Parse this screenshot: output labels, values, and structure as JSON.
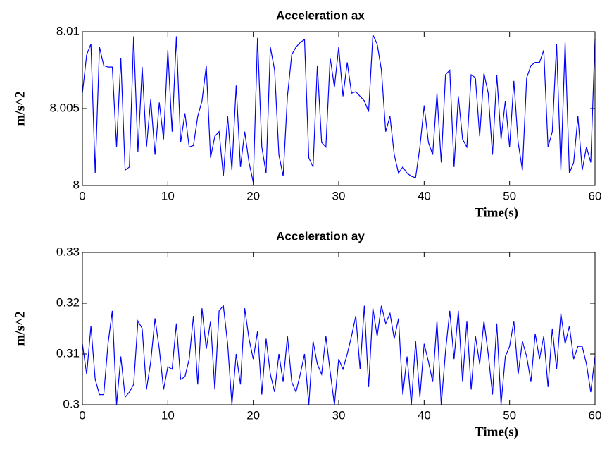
{
  "chart_data": [
    {
      "type": "line",
      "title": "Acceleration ax",
      "xlabel": "Time(s)",
      "ylabel": "m/s^2",
      "color": "#0000ff",
      "xlim": [
        0,
        60
      ],
      "xticks": [
        0,
        10,
        20,
        30,
        40,
        50,
        60
      ],
      "ylim": [
        8,
        8.01
      ],
      "yticks": [
        8,
        8.005,
        8.01
      ],
      "x": [
        0,
        0.5,
        1,
        1.5,
        2,
        2.5,
        3,
        3.5,
        4,
        4.5,
        5,
        5.5,
        6,
        6.5,
        7,
        7.5,
        8,
        8.5,
        9,
        9.5,
        10,
        10.5,
        11,
        11.5,
        12,
        12.5,
        13,
        13.5,
        14,
        14.5,
        15,
        15.5,
        16,
        16.5,
        17,
        17.5,
        18,
        18.5,
        19,
        19.5,
        20,
        20.5,
        21,
        21.5,
        22,
        22.5,
        23,
        23.5,
        24,
        24.5,
        25,
        25.5,
        26,
        26.5,
        27,
        27.5,
        28,
        28.5,
        29,
        29.5,
        30,
        30.5,
        31,
        31.5,
        32,
        32.5,
        33,
        33.5,
        34,
        34.5,
        35,
        35.5,
        36,
        36.5,
        37,
        37.5,
        38,
        38.5,
        39,
        39.5,
        40,
        40.5,
        41,
        41.5,
        42,
        42.5,
        43,
        43.5,
        44,
        44.5,
        45,
        45.5,
        46,
        46.5,
        47,
        47.5,
        48,
        48.5,
        49,
        49.5,
        50,
        50.5,
        51,
        51.5,
        52,
        52.5,
        53,
        53.5,
        54,
        54.5,
        55,
        55.5,
        56,
        56.5,
        57,
        57.5,
        58,
        58.5,
        59,
        59.5,
        60
      ],
      "values": [
        8.006,
        8.0085,
        8.0092,
        8.0008,
        8.009,
        8.0078,
        8.0077,
        8.0077,
        8.0025,
        8.0083,
        8.001,
        8.0012,
        8.0097,
        8.0022,
        8.0077,
        8.0025,
        8.0056,
        8.002,
        8.0054,
        8.003,
        8.0088,
        8.0035,
        8.0097,
        8.0028,
        8.0047,
        8.0025,
        8.0026,
        8.0045,
        8.0055,
        8.0078,
        8.0018,
        8.0032,
        8.0035,
        8.0006,
        8.0045,
        8.001,
        8.0065,
        8.0012,
        8.0035,
        8.0015,
        8.0002,
        8.0096,
        8.0025,
        8.0008,
        8.009,
        8.0075,
        8.002,
        8.0006,
        8.0058,
        8.0085,
        8.009,
        8.0093,
        8.0095,
        8.0018,
        8.0012,
        8.0078,
        8.0028,
        8.0025,
        8.0083,
        8.0064,
        8.009,
        8.0058,
        8.008,
        8.006,
        8.0061,
        8.0058,
        8.0055,
        8.0048,
        8.0098,
        8.0092,
        8.0075,
        8.0035,
        8.0045,
        8.002,
        8.0008,
        8.0012,
        8.0008,
        8.0006,
        8.0005,
        8.0025,
        8.0052,
        8.0028,
        8.002,
        8.006,
        8.0015,
        8.0072,
        8.0075,
        8.0012,
        8.0058,
        8.003,
        8.0025,
        8.0072,
        8.007,
        8.0032,
        8.0073,
        8.006,
        8.002,
        8.0072,
        8.003,
        8.0055,
        8.0025,
        8.0068,
        8.0028,
        8.001,
        8.007,
        8.0078,
        8.008,
        8.008,
        8.0088,
        8.0025,
        8.0035,
        8.0092,
        8.001,
        8.0093,
        8.0008,
        8.0015,
        8.0045,
        8.001,
        8.0025,
        8.0015,
        8.0095
      ]
    },
    {
      "type": "line",
      "title": "Acceleration ay",
      "xlabel": "Time(s)",
      "ylabel": "m/s^2",
      "color": "#0000ff",
      "xlim": [
        0,
        60
      ],
      "xticks": [
        0,
        10,
        20,
        30,
        40,
        50,
        60
      ],
      "ylim": [
        0.3,
        0.33
      ],
      "yticks": [
        0.3,
        0.31,
        0.32,
        0.33
      ],
      "x": [
        0,
        0.5,
        1,
        1.5,
        2,
        2.5,
        3,
        3.5,
        4,
        4.5,
        5,
        5.5,
        6,
        6.5,
        7,
        7.5,
        8,
        8.5,
        9,
        9.5,
        10,
        10.5,
        11,
        11.5,
        12,
        12.5,
        13,
        13.5,
        14,
        14.5,
        15,
        15.5,
        16,
        16.5,
        17,
        17.5,
        18,
        18.5,
        19,
        19.5,
        20,
        20.5,
        21,
        21.5,
        22,
        22.5,
        23,
        23.5,
        24,
        24.5,
        25,
        25.5,
        26,
        26.5,
        27,
        27.5,
        28,
        28.5,
        29,
        29.5,
        30,
        30.5,
        31,
        31.5,
        32,
        32.5,
        33,
        33.5,
        34,
        34.5,
        35,
        35.5,
        36,
        36.5,
        37,
        37.5,
        38,
        38.5,
        39,
        39.5,
        40,
        40.5,
        41,
        41.5,
        42,
        42.5,
        43,
        43.5,
        44,
        44.5,
        45,
        45.5,
        46,
        46.5,
        47,
        47.5,
        48,
        48.5,
        49,
        49.5,
        50,
        50.5,
        51,
        51.5,
        52,
        52.5,
        53,
        53.5,
        54,
        54.5,
        55,
        55.5,
        56,
        56.5,
        57,
        57.5,
        58,
        58.5,
        59,
        59.5,
        60
      ],
      "values": [
        0.312,
        0.306,
        0.3155,
        0.305,
        0.302,
        0.302,
        0.312,
        0.3185,
        0.3,
        0.3095,
        0.3015,
        0.3025,
        0.304,
        0.3165,
        0.315,
        0.303,
        0.3085,
        0.317,
        0.311,
        0.303,
        0.3075,
        0.307,
        0.316,
        0.305,
        0.3055,
        0.309,
        0.3175,
        0.304,
        0.319,
        0.311,
        0.3165,
        0.303,
        0.3185,
        0.3195,
        0.312,
        0.3,
        0.31,
        0.304,
        0.319,
        0.313,
        0.309,
        0.3145,
        0.302,
        0.313,
        0.306,
        0.3025,
        0.31,
        0.3045,
        0.3135,
        0.3045,
        0.3025,
        0.306,
        0.31,
        0.3,
        0.3125,
        0.308,
        0.306,
        0.3135,
        0.3065,
        0.3,
        0.309,
        0.307,
        0.31,
        0.3135,
        0.3175,
        0.307,
        0.3195,
        0.3035,
        0.319,
        0.3135,
        0.3195,
        0.316,
        0.318,
        0.313,
        0.317,
        0.302,
        0.3095,
        0.3,
        0.3125,
        0.3015,
        0.312,
        0.3085,
        0.3045,
        0.3165,
        0.3,
        0.3105,
        0.3185,
        0.309,
        0.3185,
        0.3045,
        0.3165,
        0.303,
        0.3135,
        0.308,
        0.3165,
        0.31,
        0.302,
        0.316,
        0.3,
        0.3095,
        0.3115,
        0.3165,
        0.306,
        0.3125,
        0.3095,
        0.3045,
        0.314,
        0.309,
        0.3135,
        0.3035,
        0.315,
        0.307,
        0.318,
        0.312,
        0.3155,
        0.309,
        0.3115,
        0.3115,
        0.308,
        0.3025,
        0.3095
      ]
    }
  ]
}
